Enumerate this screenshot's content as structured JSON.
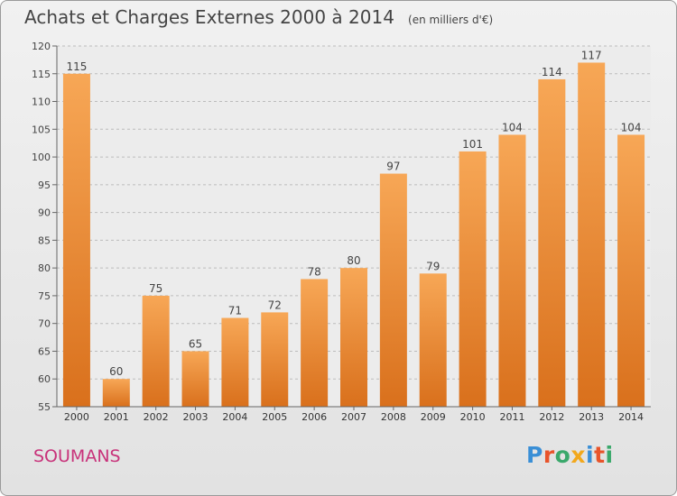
{
  "title": "Achats et Charges Externes 2000 à 2014",
  "unit_note": "(en milliers d'€)",
  "commune": "SOUMANS",
  "brand": "Proxiti",
  "brand_colors": [
    "#3a8fd6",
    "#e8542b",
    "#3aa86b",
    "#f2a81d",
    "#3a8fd6",
    "#e8542b",
    "#3aa86b"
  ],
  "bar_color": "#f0923a",
  "chart_data": {
    "type": "bar",
    "categories": [
      "2000",
      "2001",
      "2002",
      "2003",
      "2004",
      "2005",
      "2006",
      "2007",
      "2008",
      "2009",
      "2010",
      "2011",
      "2012",
      "2013",
      "2014"
    ],
    "values": [
      115,
      60,
      75,
      65,
      71,
      72,
      78,
      80,
      97,
      79,
      101,
      104,
      114,
      117,
      104
    ],
    "ylim": [
      55,
      120
    ],
    "yticks": [
      55,
      60,
      65,
      70,
      75,
      80,
      85,
      90,
      95,
      100,
      105,
      110,
      115,
      120
    ],
    "grid": true
  }
}
